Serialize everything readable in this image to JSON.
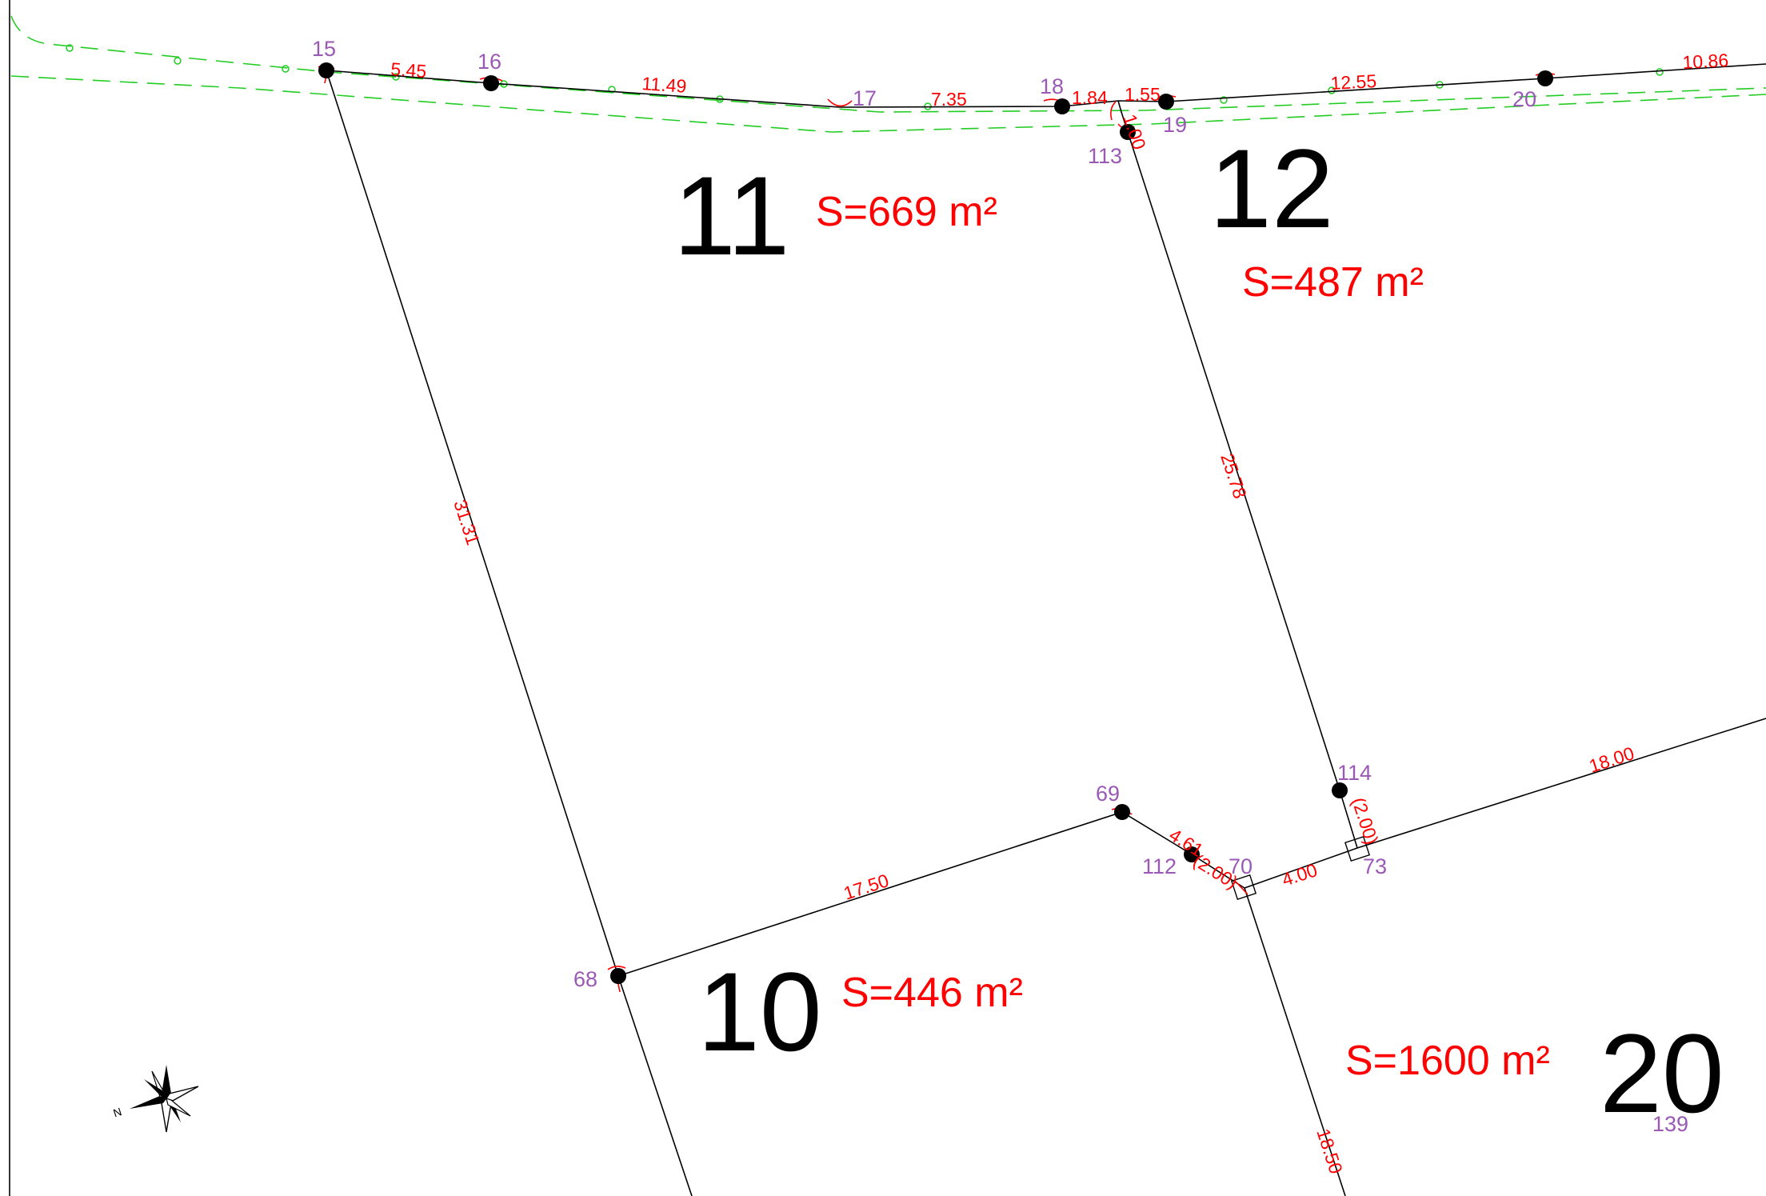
{
  "colors": {
    "boundary": "#000000",
    "dimension_text": "#ff0000",
    "area_text": "#ff0000",
    "point_label": "#9b59b6",
    "road_line": "#22cc22"
  },
  "icons": {
    "compass": "north-arrow-compass-icon",
    "compass_letter": "N"
  },
  "lots": [
    {
      "number": "11",
      "area": "S=669 m²"
    },
    {
      "number": "12",
      "area": "S=487 m²"
    },
    {
      "number": "10",
      "area": "S=446 m²"
    },
    {
      "number": "20",
      "area": "S=1600 m²"
    }
  ],
  "points": [
    {
      "id": "15"
    },
    {
      "id": "16"
    },
    {
      "id": "17"
    },
    {
      "id": "18"
    },
    {
      "id": "19"
    },
    {
      "id": "20"
    },
    {
      "id": "113"
    },
    {
      "id": "114"
    },
    {
      "id": "69"
    },
    {
      "id": "112"
    },
    {
      "id": "70"
    },
    {
      "id": "73"
    },
    {
      "id": "68"
    },
    {
      "id": "139"
    }
  ],
  "dimensions": [
    {
      "value": "5.45"
    },
    {
      "value": "11.49"
    },
    {
      "value": "7.35"
    },
    {
      "value": "1.84"
    },
    {
      "value": "1.55"
    },
    {
      "value": "12.55"
    },
    {
      "value": "10.86"
    },
    {
      "value": "31.31"
    },
    {
      "value": "25.78"
    },
    {
      "value": "17.50"
    },
    {
      "value": "4.61"
    },
    {
      "value": "(2.00)"
    },
    {
      "value": "4.00"
    },
    {
      "value": "(2.00)"
    },
    {
      "value": "18.00"
    },
    {
      "value": "18.50"
    },
    {
      "value": "1.00"
    }
  ]
}
